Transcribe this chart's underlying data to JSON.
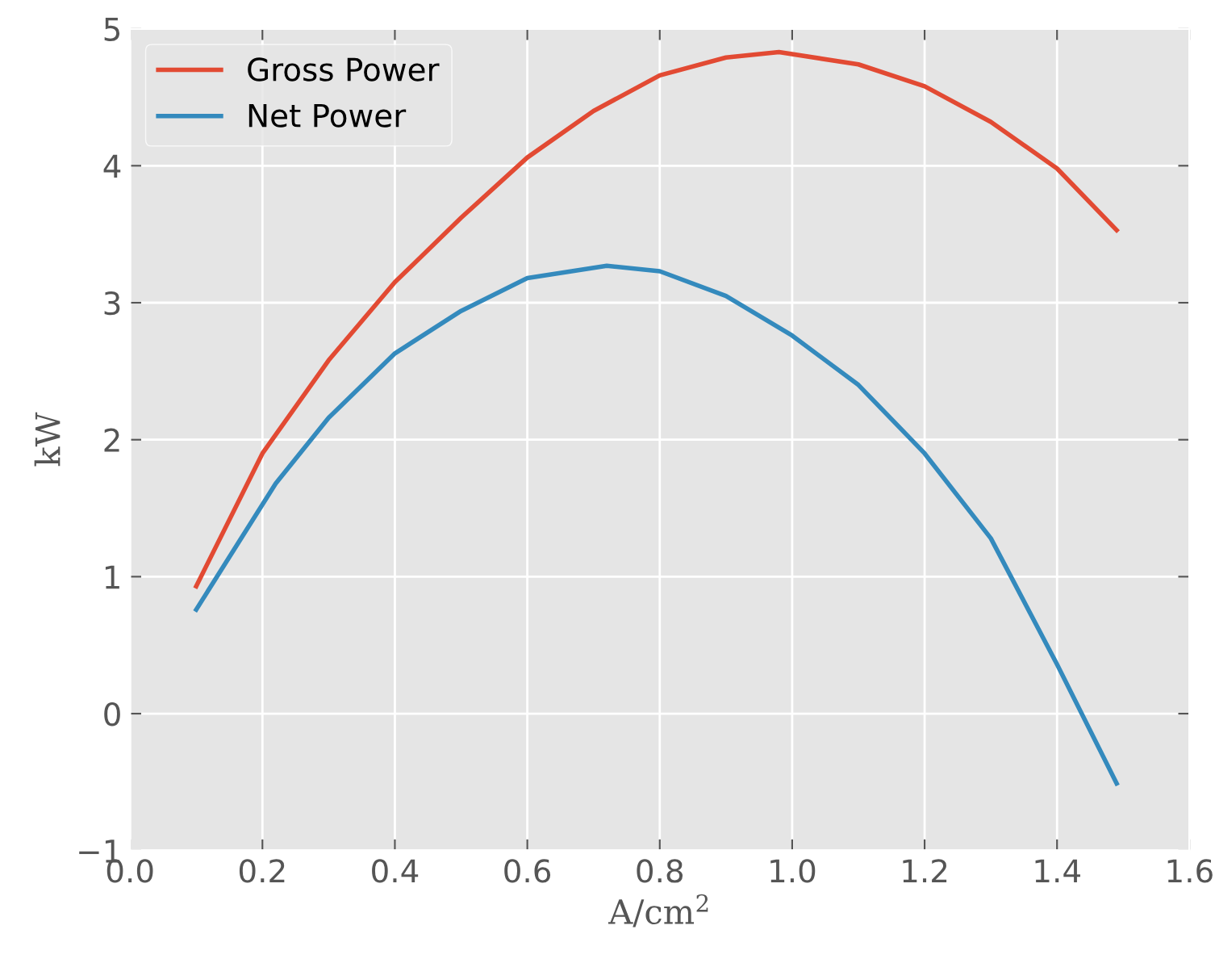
{
  "chart_data": {
    "type": "line",
    "xlabel": "A/cm$^{2}$",
    "ylabel": "kW",
    "xlim": [
      0.0,
      1.6
    ],
    "xticks": [
      {
        "value": 0.0,
        "label": "0.0"
      },
      0.2,
      0.4,
      0.6,
      0.8,
      {
        "value": 1.0,
        "label": "1.0"
      },
      1.2,
      1.4,
      1.6
    ],
    "ylim": [
      -1,
      5
    ],
    "yticks": [
      {
        "value": -1,
        "label": "−1"
      },
      0,
      1,
      2,
      3,
      4,
      5
    ],
    "grid": true,
    "legend": "top left",
    "line_style": "solid",
    "marker": "none",
    "series": [
      {
        "name": "Gross Power",
        "color": "#e24a33",
        "x": [
          0.1,
          0.2,
          0.3,
          0.4,
          0.5,
          0.6,
          0.7,
          0.8,
          0.9,
          0.98,
          1.1,
          1.2,
          1.3,
          1.4,
          1.49
        ],
        "values": [
          0.93,
          1.9,
          2.58,
          3.15,
          3.62,
          4.06,
          4.4,
          4.66,
          4.79,
          4.83,
          4.74,
          4.58,
          4.32,
          3.98,
          3.53
        ]
      },
      {
        "name": "Net Power",
        "color": "#348abd",
        "x": [
          0.1,
          0.22,
          0.3,
          0.4,
          0.5,
          0.6,
          0.72,
          0.8,
          0.9,
          1.0,
          1.1,
          1.2,
          1.3,
          1.4,
          1.49
        ],
        "values": [
          0.76,
          1.68,
          2.16,
          2.63,
          2.94,
          3.18,
          3.27,
          3.23,
          3.05,
          2.76,
          2.4,
          1.9,
          1.28,
          0.36,
          -0.51
        ]
      }
    ]
  }
}
